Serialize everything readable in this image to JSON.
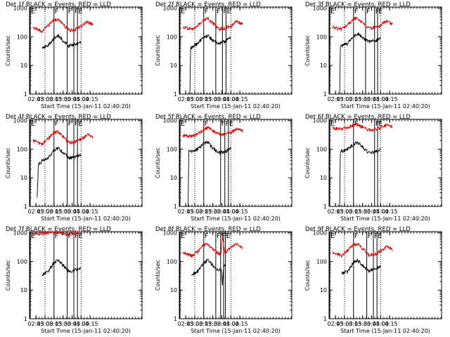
{
  "colors": {
    "events": "#000000",
    "lld": "#e00000",
    "axes": "#000000",
    "background": "#ffffff"
  },
  "shared": {
    "xlabel": "Start Time (15-Jan-11 02:40:20)",
    "ylabel": "Counts/sec",
    "x_ticks": [
      "02:45",
      "03:00",
      "03:15",
      "03:30",
      "03:45",
      "04:00",
      "04:15"
    ],
    "y_ticks": [
      "1",
      "10",
      "100",
      "1000"
    ],
    "x_range_minutes": [
      -6,
      181
    ],
    "y_range": [
      1,
      1100
    ],
    "y_scale": "log",
    "dotted_markers_time": [
      "03:00",
      "04:00"
    ],
    "flag_labels": {
      "start": "E",
      "flare": "F",
      "end": "E"
    }
  },
  "chart_data": [
    {
      "type": "line",
      "title": "Det 1f BLACK = Events, RED = LLD",
      "flag_lines_time": [
        "03:15",
        "03:37",
        "03:48",
        "03:54"
      ],
      "series": [
        {
          "name": "Events",
          "color": "#000000",
          "x": [
            "02:55",
            "03:05",
            "03:15",
            "03:22",
            "03:30",
            "03:40",
            "03:50",
            "04:00"
          ],
          "y": [
            40,
            50,
            90,
            110,
            75,
            48,
            55,
            65
          ]
        },
        {
          "name": "LLD",
          "color": "#e00000",
          "x": [
            "02:40",
            "02:55",
            "03:05",
            "03:15",
            "03:22",
            "03:30",
            "03:40",
            "03:50",
            "04:00",
            "04:10",
            "04:20"
          ],
          "y": [
            210,
            160,
            240,
            380,
            410,
            280,
            170,
            180,
            230,
            330,
            270
          ]
        }
      ]
    },
    {
      "type": "line",
      "title": "Det 2f BLACK = Events, RED = LLD",
      "flag_lines_time": [
        "03:15",
        "03:35",
        "03:46",
        "03:52"
      ],
      "series": [
        {
          "name": "Events",
          "color": "#000000",
          "x": [
            "02:52",
            "02:53",
            "03:05",
            "03:15",
            "03:22",
            "03:30",
            "03:40",
            "03:50",
            "04:00"
          ],
          "y": [
            1,
            40,
            60,
            100,
            110,
            75,
            60,
            70,
            95
          ]
        },
        {
          "name": "LLD",
          "color": "#e00000",
          "x": [
            "02:40",
            "02:55",
            "03:05",
            "03:15",
            "03:22",
            "03:30",
            "03:40",
            "03:50",
            "04:00",
            "04:10",
            "04:20"
          ],
          "y": [
            230,
            180,
            250,
            400,
            430,
            300,
            190,
            200,
            240,
            350,
            270
          ]
        }
      ]
    },
    {
      "type": "line",
      "title": "Det 3f BLACK = Events, RED = LLD",
      "flag_lines_time": [
        "03:15",
        "03:35",
        "03:50",
        "03:55"
      ],
      "series": [
        {
          "name": "Events",
          "color": "#000000",
          "x": [
            "02:52",
            "02:53",
            "03:05",
            "03:15",
            "03:22",
            "03:30",
            "03:40",
            "03:50",
            "04:00"
          ],
          "y": [
            1,
            45,
            60,
            100,
            130,
            90,
            70,
            70,
            90
          ]
        },
        {
          "name": "LLD",
          "color": "#e00000",
          "x": [
            "02:40",
            "02:55",
            "03:05",
            "03:15",
            "03:22",
            "03:30",
            "03:40",
            "03:50",
            "04:00",
            "04:10",
            "04:20"
          ],
          "y": [
            220,
            180,
            260,
            420,
            440,
            310,
            200,
            210,
            250,
            360,
            280
          ]
        }
      ]
    },
    {
      "type": "line",
      "title": "Det 4f BLACK = Events, RED = LLD",
      "flag_lines_time": [
        "03:15",
        "03:37",
        "03:48",
        "03:54"
      ],
      "series": [
        {
          "name": "Events",
          "color": "#000000",
          "x": [
            "02:47",
            "02:49",
            "02:55",
            "03:05",
            "03:15",
            "03:22",
            "03:30",
            "03:40",
            "03:50",
            "04:00"
          ],
          "y": [
            2,
            30,
            40,
            50,
            90,
            110,
            75,
            50,
            55,
            65
          ]
        },
        {
          "name": "LLD",
          "color": "#e00000",
          "x": [
            "02:40",
            "02:55",
            "03:05",
            "03:15",
            "03:22",
            "03:30",
            "03:40",
            "03:50",
            "04:00",
            "04:10",
            "04:20"
          ],
          "y": [
            200,
            150,
            230,
            370,
            400,
            270,
            170,
            180,
            220,
            320,
            260
          ]
        }
      ]
    },
    {
      "type": "line",
      "title": "Det 5f BLACK = Events, RED = LLD",
      "flag_lines_time": [
        "03:15",
        "03:43",
        "03:50",
        "03:56"
      ],
      "series": [
        {
          "name": "Events",
          "color": "#000000",
          "x": [
            "02:49",
            "02:50",
            "03:05",
            "03:15",
            "03:22",
            "03:30",
            "03:40",
            "03:50",
            "04:00"
          ],
          "y": [
            1,
            80,
            100,
            160,
            170,
            110,
            75,
            80,
            110
          ]
        },
        {
          "name": "LLD",
          "color": "#e00000",
          "x": [
            "02:40",
            "02:55",
            "03:05",
            "03:15",
            "03:22",
            "03:30",
            "03:40",
            "03:50",
            "04:00",
            "04:10",
            "04:20"
          ],
          "y": [
            300,
            280,
            340,
            500,
            560,
            450,
            330,
            340,
            380,
            520,
            450
          ]
        }
      ]
    },
    {
      "type": "line",
      "title": "Det 6f BLACK = Events, RED = LLD",
      "flag_lines_time": [
        "03:15",
        "03:50",
        "03:55"
      ],
      "series": [
        {
          "name": "Events",
          "color": "#000000",
          "x": [
            "02:52",
            "02:53",
            "03:05",
            "03:15",
            "03:22",
            "03:30",
            "03:40",
            "03:50",
            "04:00"
          ],
          "y": [
            1,
            80,
            100,
            150,
            170,
            120,
            75,
            80,
            100
          ]
        },
        {
          "name": "LLD",
          "color": "#e00000",
          "x": [
            "02:40",
            "02:55",
            "03:05",
            "03:15",
            "03:22",
            "03:30",
            "03:40",
            "03:50",
            "04:00",
            "04:10",
            "04:20"
          ],
          "y": [
            550,
            500,
            580,
            700,
            720,
            600,
            470,
            480,
            560,
            700,
            620
          ]
        }
      ]
    },
    {
      "type": "line",
      "title": "Det 7f BLACK = Events, RED = LLD",
      "flag_lines_time": [
        "03:15",
        "03:37",
        "03:48",
        "03:54"
      ],
      "series": [
        {
          "name": "Events",
          "color": "#000000",
          "x": [
            "02:55",
            "03:05",
            "03:15",
            "03:22",
            "03:30",
            "03:40",
            "03:50",
            "04:00"
          ],
          "y": [
            35,
            45,
            90,
            110,
            75,
            45,
            50,
            65
          ]
        },
        {
          "name": "LLD",
          "color": "#e00000",
          "x": [
            "02:40",
            "02:55",
            "03:05",
            "03:15",
            "03:22",
            "03:30",
            "03:40",
            "03:50",
            "04:00"
          ],
          "y": [
            900,
            950,
            1000,
            1050,
            1000,
            950,
            900,
            1000,
            1050
          ]
        }
      ]
    },
    {
      "type": "line",
      "title": "Det 8f BLACK = Events, RED = LLD",
      "flag_lines_time": [
        "03:15",
        "03:35",
        "03:43",
        "03:48",
        "03:51"
      ],
      "series": [
        {
          "name": "Events",
          "color": "#000000",
          "x": [
            "02:55",
            "03:05",
            "03:15",
            "03:22",
            "03:30",
            "03:40",
            "03:44",
            "03:46",
            "03:48",
            "03:52"
          ],
          "y": [
            35,
            45,
            90,
            110,
            75,
            50,
            55,
            15,
            60,
            80
          ]
        },
        {
          "name": "LLD",
          "color": "#e00000",
          "x": [
            "02:40",
            "02:55",
            "03:05",
            "03:15",
            "03:22",
            "03:30",
            "03:40",
            "03:44",
            "03:46",
            "03:50",
            "04:00",
            "04:10",
            "04:20"
          ],
          "y": [
            200,
            160,
            230,
            370,
            410,
            280,
            180,
            200,
            800,
            200,
            300,
            400,
            300
          ]
        }
      ]
    },
    {
      "type": "line",
      "title": "Det 9f BLACK = Events, RED = LLD",
      "flag_lines_time": [
        "03:15",
        "03:37",
        "03:48",
        "03:54"
      ],
      "series": [
        {
          "name": "Events",
          "color": "#000000",
          "x": [
            "02:55",
            "03:05",
            "03:15",
            "03:22",
            "03:30",
            "03:40",
            "03:50",
            "04:00"
          ],
          "y": [
            40,
            45,
            90,
            110,
            75,
            48,
            55,
            65
          ]
        },
        {
          "name": "LLD",
          "color": "#e00000",
          "x": [
            "02:40",
            "02:55",
            "03:05",
            "03:15",
            "03:22",
            "03:30",
            "03:40",
            "03:50",
            "04:00",
            "04:10",
            "04:20"
          ],
          "y": [
            210,
            160,
            240,
            380,
            410,
            280,
            170,
            180,
            230,
            330,
            270
          ]
        }
      ]
    }
  ]
}
